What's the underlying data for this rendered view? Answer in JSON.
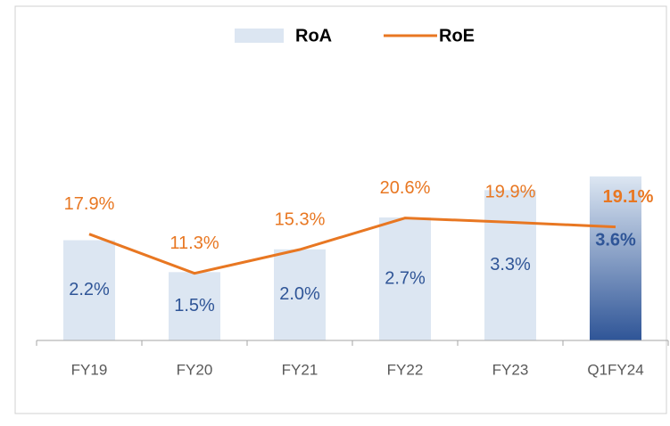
{
  "chart_data": {
    "type": "bar_line",
    "categories": [
      "FY19",
      "FY20",
      "FY21",
      "FY22",
      "FY23",
      "Q1FY24"
    ],
    "series": [
      {
        "name": "RoA",
        "type": "bar",
        "color": "#dce6f2",
        "label_color": "#2f5597",
        "values": [
          2.2,
          1.5,
          2.0,
          2.7,
          3.3,
          3.6
        ],
        "value_labels": [
          "2.2%",
          "1.5%",
          "2.0%",
          "2.7%",
          "3.3%",
          "3.6%"
        ]
      },
      {
        "name": "RoE",
        "type": "line",
        "axis": "y2",
        "color": "#e87722",
        "label_color": "#e87722",
        "values": [
          17.9,
          11.3,
          15.3,
          20.6,
          19.9,
          19.1
        ],
        "value_labels": [
          "17.9%",
          "11.3%",
          "15.3%",
          "20.6%",
          "19.9%",
          "19.1%"
        ]
      }
    ],
    "ylim": [
      0,
      6.3
    ],
    "y2lim": [
      0,
      48.3
    ],
    "grid": false,
    "legend": "top"
  }
}
